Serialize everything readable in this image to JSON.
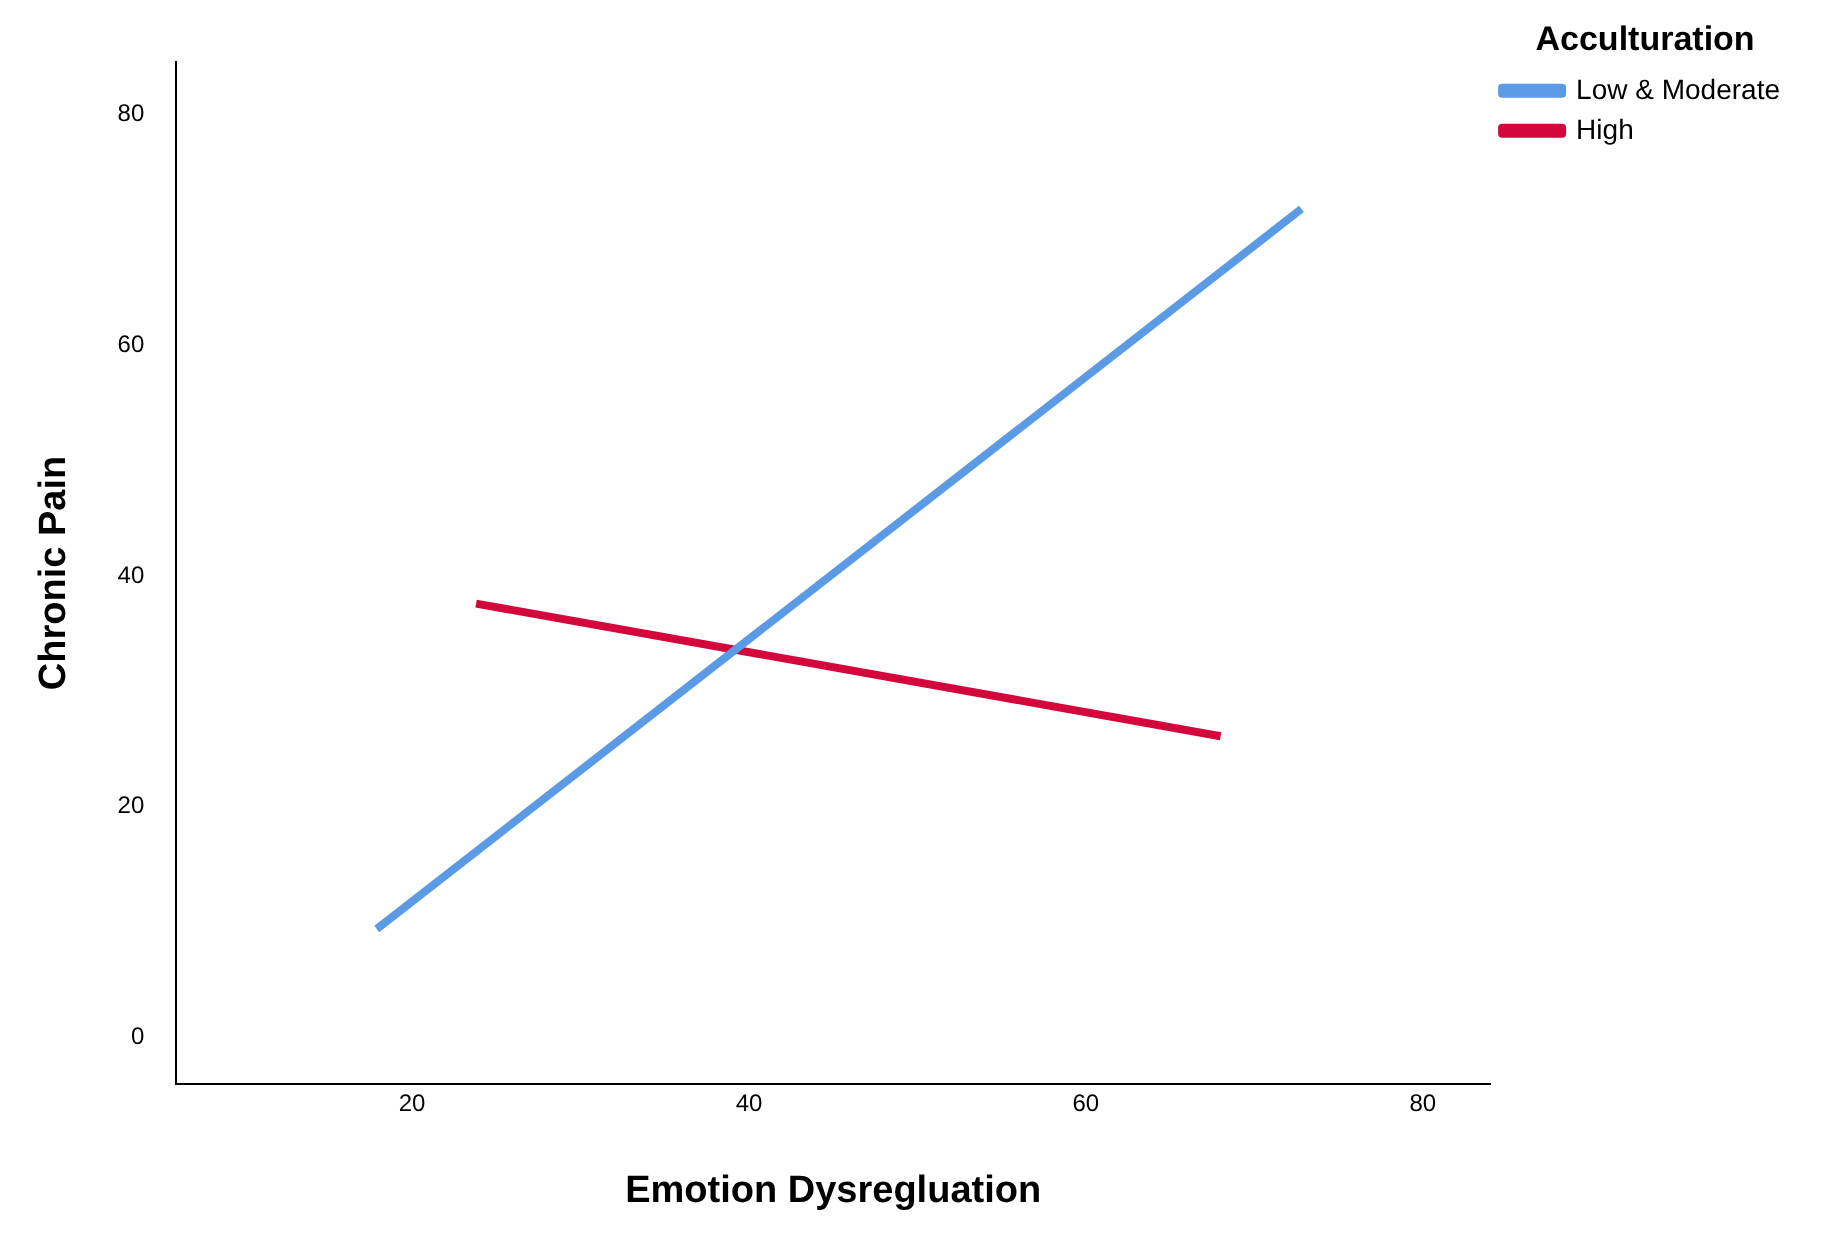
{
  "chart_data": {
    "type": "line",
    "xlabel": "Emotion Dysregluation",
    "ylabel": "Chronic Pain",
    "legend_title": "Acculturation",
    "legend": "top right",
    "grid": false,
    "xlim": [
      6,
      84
    ],
    "xticks": [
      20,
      40,
      60,
      80
    ],
    "ylim": [
      -4,
      84.5
    ],
    "yticks": [
      0,
      20,
      40,
      60,
      80
    ],
    "series": [
      {
        "name": "Low & Moderate",
        "color": "#5b9be6",
        "x": [
          17.9,
          72.8
        ],
        "values": [
          9.4,
          71.8
        ]
      },
      {
        "name": "High",
        "color": "#d3073b",
        "x": [
          23.8,
          68.0
        ],
        "values": [
          37.6,
          26.1
        ]
      }
    ]
  }
}
